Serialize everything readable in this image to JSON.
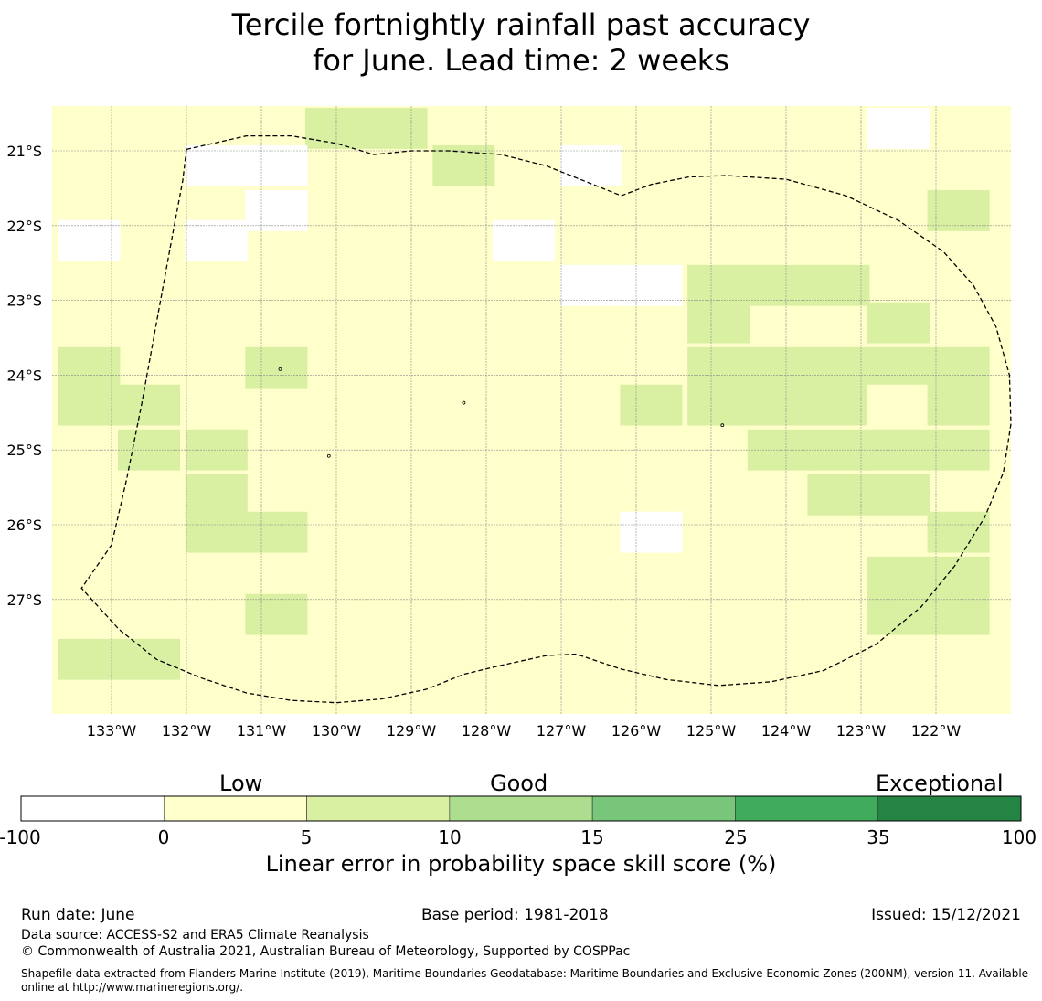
{
  "title": {
    "line1": "Tercile fortnightly rainfall past accuracy",
    "line2": "for June. Lead time: 2 weeks"
  },
  "map": {
    "lon_ticks": [
      "133°W",
      "132°W",
      "131°W",
      "130°W",
      "129°W",
      "128°W",
      "127°W",
      "126°W",
      "125°W",
      "124°W",
      "123°W",
      "122°W"
    ],
    "lat_ticks": [
      "21°S",
      "22°S",
      "23°S",
      "24°S",
      "25°S",
      "26°S",
      "27°S"
    ],
    "extent_lon": [
      -133.8,
      -121.0
    ],
    "extent_lat": [
      -28.5,
      -20.6
    ],
    "cell_size_deg": 0.83,
    "default_category": 1,
    "cells": [
      {
        "lon": -130.0,
        "lat": -20.7,
        "cat": 2
      },
      {
        "lon": -129.2,
        "lat": -20.7,
        "cat": 2
      },
      {
        "lon": -122.5,
        "lat": -20.7,
        "cat": 0
      },
      {
        "lon": -131.6,
        "lat": -21.2,
        "cat": 0
      },
      {
        "lon": -130.8,
        "lat": -21.2,
        "cat": 0
      },
      {
        "lon": -128.3,
        "lat": -21.2,
        "cat": 2
      },
      {
        "lon": -126.6,
        "lat": -21.2,
        "cat": 0
      },
      {
        "lon": -130.8,
        "lat": -21.8,
        "cat": 0
      },
      {
        "lon": -121.7,
        "lat": -21.8,
        "cat": 2
      },
      {
        "lon": -133.3,
        "lat": -22.2,
        "cat": 0
      },
      {
        "lon": -131.6,
        "lat": -22.2,
        "cat": 0
      },
      {
        "lon": -127.5,
        "lat": -22.2,
        "cat": 0
      },
      {
        "lon": -126.6,
        "lat": -22.8,
        "cat": 0
      },
      {
        "lon": -125.8,
        "lat": -22.8,
        "cat": 0
      },
      {
        "lon": -124.9,
        "lat": -22.8,
        "cat": 2
      },
      {
        "lon": -124.1,
        "lat": -22.8,
        "cat": 2
      },
      {
        "lon": -123.3,
        "lat": -22.8,
        "cat": 2
      },
      {
        "lon": -124.9,
        "lat": -23.3,
        "cat": 2
      },
      {
        "lon": -122.5,
        "lat": -23.3,
        "cat": 2
      },
      {
        "lon": -133.3,
        "lat": -23.9,
        "cat": 2
      },
      {
        "lon": -130.8,
        "lat": -23.9,
        "cat": 2
      },
      {
        "lon": -124.9,
        "lat": -23.9,
        "cat": 2
      },
      {
        "lon": -124.1,
        "lat": -23.9,
        "cat": 2
      },
      {
        "lon": -123.3,
        "lat": -23.9,
        "cat": 2
      },
      {
        "lon": -122.5,
        "lat": -23.9,
        "cat": 2
      },
      {
        "lon": -121.7,
        "lat": -23.9,
        "cat": 2
      },
      {
        "lon": -133.3,
        "lat": -24.4,
        "cat": 2
      },
      {
        "lon": -132.5,
        "lat": -24.4,
        "cat": 2
      },
      {
        "lon": -125.8,
        "lat": -24.4,
        "cat": 2
      },
      {
        "lon": -124.9,
        "lat": -24.4,
        "cat": 2
      },
      {
        "lon": -124.1,
        "lat": -24.4,
        "cat": 2
      },
      {
        "lon": -123.3,
        "lat": -24.4,
        "cat": 2
      },
      {
        "lon": -122.5,
        "lat": -24.4,
        "cat": 1
      },
      {
        "lon": -121.7,
        "lat": -24.4,
        "cat": 2
      },
      {
        "lon": -132.5,
        "lat": -25.0,
        "cat": 2
      },
      {
        "lon": -131.6,
        "lat": -25.0,
        "cat": 2
      },
      {
        "lon": -124.1,
        "lat": -25.0,
        "cat": 2
      },
      {
        "lon": -123.3,
        "lat": -25.0,
        "cat": 2
      },
      {
        "lon": -122.5,
        "lat": -25.0,
        "cat": 2
      },
      {
        "lon": -121.7,
        "lat": -25.0,
        "cat": 2
      },
      {
        "lon": -131.6,
        "lat": -25.6,
        "cat": 2
      },
      {
        "lon": -123.3,
        "lat": -25.6,
        "cat": 2
      },
      {
        "lon": -122.5,
        "lat": -25.6,
        "cat": 2
      },
      {
        "lon": -131.6,
        "lat": -26.1,
        "cat": 2
      },
      {
        "lon": -130.8,
        "lat": -26.1,
        "cat": 2
      },
      {
        "lon": -125.8,
        "lat": -26.1,
        "cat": 0
      },
      {
        "lon": -121.7,
        "lat": -26.1,
        "cat": 2
      },
      {
        "lon": -122.5,
        "lat": -26.7,
        "cat": 2
      },
      {
        "lon": -121.7,
        "lat": -26.7,
        "cat": 2
      },
      {
        "lon": -130.8,
        "lat": -27.2,
        "cat": 2
      },
      {
        "lon": -122.5,
        "lat": -27.2,
        "cat": 2
      },
      {
        "lon": -121.7,
        "lat": -27.2,
        "cat": 2
      },
      {
        "lon": -133.3,
        "lat": -27.8,
        "cat": 2
      },
      {
        "lon": -132.5,
        "lat": -27.8,
        "cat": 2
      }
    ],
    "eez_boundary": [
      [
        -132.0,
        -20.98
      ],
      [
        -131.2,
        -20.8
      ],
      [
        -130.6,
        -20.8
      ],
      [
        -130.0,
        -20.9
      ],
      [
        -129.5,
        -21.05
      ],
      [
        -129.0,
        -21.0
      ],
      [
        -128.5,
        -21.0
      ],
      [
        -127.8,
        -21.05
      ],
      [
        -127.2,
        -21.2
      ],
      [
        -126.7,
        -21.4
      ],
      [
        -126.2,
        -21.6
      ],
      [
        -125.8,
        -21.45
      ],
      [
        -125.3,
        -21.35
      ],
      [
        -124.8,
        -21.33
      ],
      [
        -124.0,
        -21.38
      ],
      [
        -123.2,
        -21.6
      ],
      [
        -122.5,
        -21.93
      ],
      [
        -121.9,
        -22.35
      ],
      [
        -121.5,
        -22.8
      ],
      [
        -121.2,
        -23.35
      ],
      [
        -121.02,
        -24.0
      ],
      [
        -121.0,
        -24.65
      ],
      [
        -121.1,
        -25.3
      ],
      [
        -121.35,
        -25.9
      ],
      [
        -121.75,
        -26.55
      ],
      [
        -122.2,
        -27.1
      ],
      [
        -122.8,
        -27.6
      ],
      [
        -123.5,
        -27.95
      ],
      [
        -124.2,
        -28.1
      ],
      [
        -124.9,
        -28.15
      ],
      [
        -125.6,
        -28.07
      ],
      [
        -126.2,
        -27.93
      ],
      [
        -126.8,
        -27.73
      ],
      [
        -127.2,
        -27.75
      ],
      [
        -127.8,
        -27.88
      ],
      [
        -128.3,
        -28.0
      ],
      [
        -128.8,
        -28.2
      ],
      [
        -129.4,
        -28.33
      ],
      [
        -130.0,
        -28.38
      ],
      [
        -130.6,
        -28.35
      ],
      [
        -131.2,
        -28.25
      ],
      [
        -131.8,
        -28.05
      ],
      [
        -132.4,
        -27.8
      ],
      [
        -132.9,
        -27.4
      ],
      [
        -133.4,
        -26.85
      ],
      [
        -133.0,
        -26.27
      ],
      [
        -132.8,
        -25.4
      ],
      [
        -132.6,
        -24.4
      ],
      [
        -132.4,
        -23.3
      ],
      [
        -132.2,
        -22.2
      ],
      [
        -132.05,
        -21.4
      ],
      [
        -132.0,
        -20.98
      ]
    ],
    "islands": [
      {
        "lon": -128.3,
        "lat": -24.37
      },
      {
        "lon": -130.75,
        "lat": -23.92
      },
      {
        "lon": -130.1,
        "lat": -25.08
      },
      {
        "lon": -124.85,
        "lat": -24.67
      }
    ]
  },
  "colorbar": {
    "categories": [
      "Low",
      "Good",
      "Exceptional"
    ],
    "ticks": [
      "-100",
      "0",
      "5",
      "10",
      "15",
      "25",
      "35",
      "100"
    ],
    "colors": [
      "#ffffff",
      "#ffffcc",
      "#d9f0a3",
      "#addd8e",
      "#78c679",
      "#41ab5d",
      "#238443"
    ],
    "label": "Linear error in probability space skill score (%)"
  },
  "footer": {
    "run_date": "Run date: June",
    "base_period": "Base period: 1981-2018",
    "issued": "Issued: 15/12/2021",
    "data_source": "Data source: ACCESS-S2 and ERA5 Climate Reanalysis",
    "copyright": "© Commonwealth of Australia 2021, Australian Bureau of Meteorology, Supported by COSPPac",
    "shapefile_line1": "Shapefile data extracted from Flanders Marine Institute (2019), Maritime Boundaries Geodatabase: Maritime Boundaries and Exclusive Economic Zones (200NM), version 11. Available",
    "shapefile_line2": "online at http://www.marineregions.org/."
  }
}
